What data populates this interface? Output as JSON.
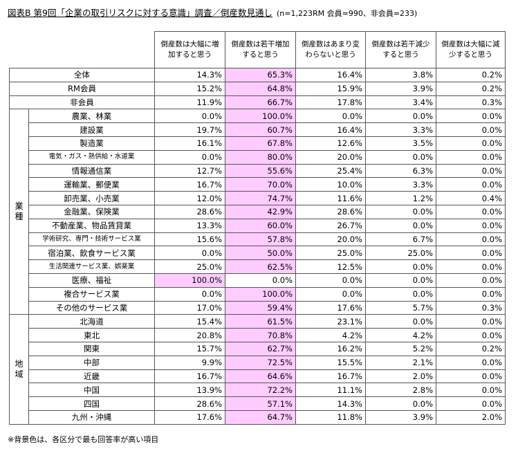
{
  "title": {
    "main": "図表B 第9回「企業の取引リスクに対する意識」調査／倒産数見通し",
    "sample": "(n=1,223RM 会員=990、非会員=233)"
  },
  "columns": [
    "倒産数は大幅に増加すると思う",
    "倒産数は若干増加すると思う",
    "倒産数はあまり変わらないと思う",
    "倒産数は若干減少すると思う",
    "倒産数は大幅に減少すると思う"
  ],
  "summary_rows": [
    {
      "label": "全体",
      "values": [
        "14.3%",
        "65.3%",
        "16.4%",
        "3.8%",
        "0.2%"
      ],
      "highlight": 1
    },
    {
      "label": "RM会員",
      "values": [
        "15.2%",
        "64.8%",
        "15.9%",
        "3.9%",
        "0.2%"
      ],
      "highlight": 1
    },
    {
      "label": "非会員",
      "values": [
        "11.9%",
        "66.7%",
        "17.8%",
        "3.4%",
        "0.3%"
      ],
      "highlight": 1
    }
  ],
  "industry_group": {
    "label": "業種",
    "rows": [
      {
        "label": "農業、林業",
        "values": [
          "0.0%",
          "100.0%",
          "0.0%",
          "0.0%",
          "0.0%"
        ],
        "highlight": 1
      },
      {
        "label": "建設業",
        "values": [
          "19.7%",
          "60.7%",
          "16.4%",
          "3.3%",
          "0.0%"
        ],
        "highlight": 1
      },
      {
        "label": "製造業",
        "values": [
          "16.1%",
          "67.8%",
          "12.6%",
          "3.5%",
          "0.0%"
        ],
        "highlight": 1
      },
      {
        "label": "電気・ガス・熱供給・水道業",
        "values": [
          "0.0%",
          "80.0%",
          "20.0%",
          "0.0%",
          "0.0%"
        ],
        "highlight": 1,
        "small": true
      },
      {
        "label": "情報通信業",
        "values": [
          "12.7%",
          "55.6%",
          "25.4%",
          "6.3%",
          "0.0%"
        ],
        "highlight": 1
      },
      {
        "label": "運輸業、郵便業",
        "values": [
          "16.7%",
          "70.0%",
          "10.0%",
          "3.3%",
          "0.0%"
        ],
        "highlight": 1
      },
      {
        "label": "卸売業、小売業",
        "values": [
          "12.0%",
          "74.7%",
          "11.6%",
          "1.2%",
          "0.4%"
        ],
        "highlight": 1
      },
      {
        "label": "金融業、保険業",
        "values": [
          "28.6%",
          "42.9%",
          "28.6%",
          "0.0%",
          "0.0%"
        ],
        "highlight": 1
      },
      {
        "label": "不動産業、物品賃貸業",
        "values": [
          "13.3%",
          "60.0%",
          "26.7%",
          "0.0%",
          "0.0%"
        ],
        "highlight": 1
      },
      {
        "label": "学術研究、専門・技術サービス業",
        "values": [
          "15.6%",
          "57.8%",
          "20.0%",
          "6.7%",
          "0.0%"
        ],
        "highlight": 1,
        "small": true
      },
      {
        "label": "宿泊業、飲食サービス業",
        "values": [
          "0.0%",
          "50.0%",
          "25.0%",
          "25.0%",
          "0.0%"
        ],
        "highlight": 1
      },
      {
        "label": "生活関連サービス業、娯楽業",
        "values": [
          "25.0%",
          "62.5%",
          "12.5%",
          "0.0%",
          "0.0%"
        ],
        "highlight": 1,
        "small": true
      },
      {
        "label": "医療、福祉",
        "values": [
          "100.0%",
          "0.0%",
          "0.0%",
          "0.0%",
          "0.0%"
        ],
        "highlight": 0
      },
      {
        "label": "複合サービス業",
        "values": [
          "0.0%",
          "100.0%",
          "0.0%",
          "0.0%",
          "0.0%"
        ],
        "highlight": 1
      },
      {
        "label": "その他のサービス業",
        "values": [
          "17.0%",
          "59.4%",
          "17.6%",
          "5.7%",
          "0.3%"
        ],
        "highlight": 1
      }
    ]
  },
  "region_group": {
    "label": "地域",
    "rows": [
      {
        "label": "北海道",
        "values": [
          "15.4%",
          "61.5%",
          "23.1%",
          "0.0%",
          "0.0%"
        ],
        "highlight": 1
      },
      {
        "label": "東北",
        "values": [
          "20.8%",
          "70.8%",
          "4.2%",
          "4.2%",
          "0.0%"
        ],
        "highlight": 1
      },
      {
        "label": "関東",
        "values": [
          "15.7%",
          "62.7%",
          "16.2%",
          "5.2%",
          "0.2%"
        ],
        "highlight": 1
      },
      {
        "label": "中部",
        "values": [
          "9.9%",
          "72.5%",
          "15.5%",
          "2.1%",
          "0.0%"
        ],
        "highlight": 1
      },
      {
        "label": "近畿",
        "values": [
          "16.7%",
          "64.6%",
          "16.7%",
          "2.0%",
          "0.0%"
        ],
        "highlight": 1
      },
      {
        "label": "中国",
        "values": [
          "13.9%",
          "72.2%",
          "11.1%",
          "2.8%",
          "0.0%"
        ],
        "highlight": 1
      },
      {
        "label": "四国",
        "values": [
          "28.6%",
          "57.1%",
          "14.3%",
          "0.0%",
          "0.0%"
        ],
        "highlight": 1
      },
      {
        "label": "九州・沖縄",
        "values": [
          "17.6%",
          "64.7%",
          "11.8%",
          "3.9%",
          "2.0%"
        ],
        "highlight": 1
      }
    ]
  },
  "note": "※背景色は、各区分で最も回答率が高い項目",
  "colors": {
    "highlight": "#ffccff",
    "border": "#555555"
  }
}
